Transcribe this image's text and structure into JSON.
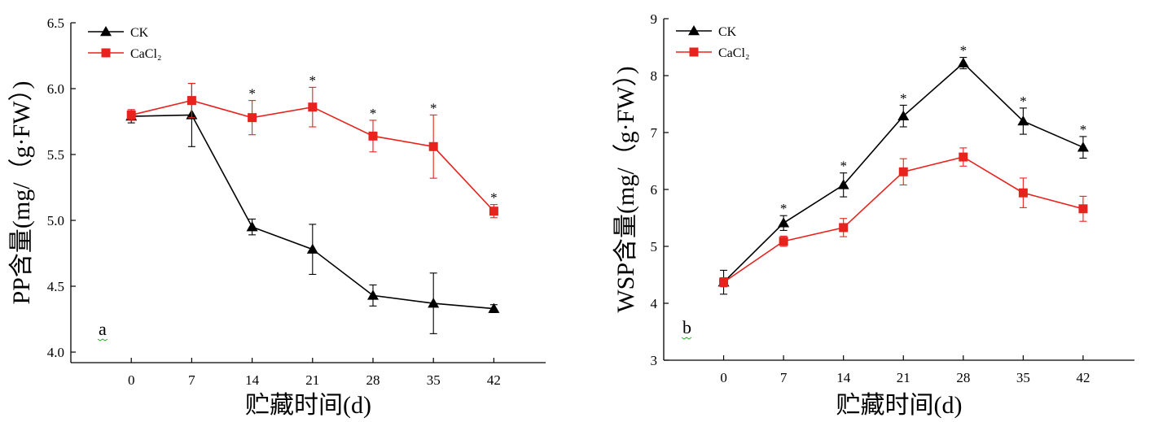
{
  "colors": {
    "CK": "#000000",
    "CaCl2": "#e8231e",
    "panel_label_underline": "#2aa82a"
  },
  "chart_data": [
    {
      "type": "line",
      "panel_label": "a",
      "xlabel": "贮藏时间(d)",
      "ylabel": "PP含量(mg/（g·FW）)",
      "x": [
        0,
        7,
        14,
        21,
        28,
        35,
        42
      ],
      "xlim": [
        -7,
        48
      ],
      "ylim": [
        3.92,
        6.5
      ],
      "yticks": [
        4.0,
        4.5,
        5.0,
        5.5,
        6.0,
        6.5
      ],
      "ytick_labels": [
        "4.0",
        "4.5",
        "5.0",
        "5.5",
        "6.0",
        "6.5"
      ],
      "xtick_labels": [
        "0",
        "7",
        "14",
        "21",
        "28",
        "35",
        "42"
      ],
      "legend": {
        "position": "top-left"
      },
      "series": [
        {
          "name": "CK",
          "marker": "triangle",
          "color": "#000000",
          "values": [
            5.79,
            5.8,
            4.95,
            4.78,
            4.43,
            4.37,
            4.33
          ],
          "errors": [
            0.05,
            0.24,
            0.06,
            0.19,
            0.08,
            0.23,
            0.03
          ]
        },
        {
          "name": "CaCl₂",
          "legend_label": "CaCl₂",
          "marker": "square",
          "color": "#e8231e",
          "values": [
            5.8,
            5.91,
            5.78,
            5.86,
            5.64,
            5.56,
            5.07
          ],
          "errors": [
            0.04,
            0.13,
            0.13,
            0.15,
            0.12,
            0.24,
            0.05
          ]
        }
      ],
      "significance": {
        "symbol": "*",
        "x": [
          14,
          21,
          28,
          35,
          42
        ]
      }
    },
    {
      "type": "line",
      "panel_label": "b",
      "xlabel": "贮藏时间(d)",
      "ylabel": "WSP含量(mg/（g·FW）)",
      "x": [
        0,
        7,
        14,
        21,
        28,
        35,
        42
      ],
      "xlim": [
        -7,
        48
      ],
      "ylim": [
        3,
        9
      ],
      "yticks": [
        3,
        4,
        5,
        6,
        7,
        8,
        9
      ],
      "ytick_labels": [
        "3",
        "4",
        "5",
        "6",
        "7",
        "8",
        "9"
      ],
      "xtick_labels": [
        "0",
        "7",
        "14",
        "21",
        "28",
        "35",
        "42"
      ],
      "legend": {
        "position": "top-left"
      },
      "series": [
        {
          "name": "CK",
          "marker": "triangle",
          "color": "#000000",
          "values": [
            4.37,
            5.41,
            6.08,
            7.29,
            8.22,
            7.2,
            6.74
          ],
          "errors": [
            0.21,
            0.13,
            0.21,
            0.19,
            0.1,
            0.23,
            0.19
          ]
        },
        {
          "name": "CaCl₂",
          "legend_label": "CaCl₂",
          "marker": "square",
          "color": "#e8231e",
          "values": [
            4.37,
            5.09,
            5.33,
            6.31,
            6.57,
            5.94,
            5.66
          ],
          "errors": [
            0.08,
            0.09,
            0.16,
            0.23,
            0.16,
            0.26,
            0.22
          ]
        }
      ],
      "significance": {
        "symbol": "*",
        "x": [
          7,
          14,
          21,
          28,
          35,
          42
        ]
      }
    }
  ]
}
